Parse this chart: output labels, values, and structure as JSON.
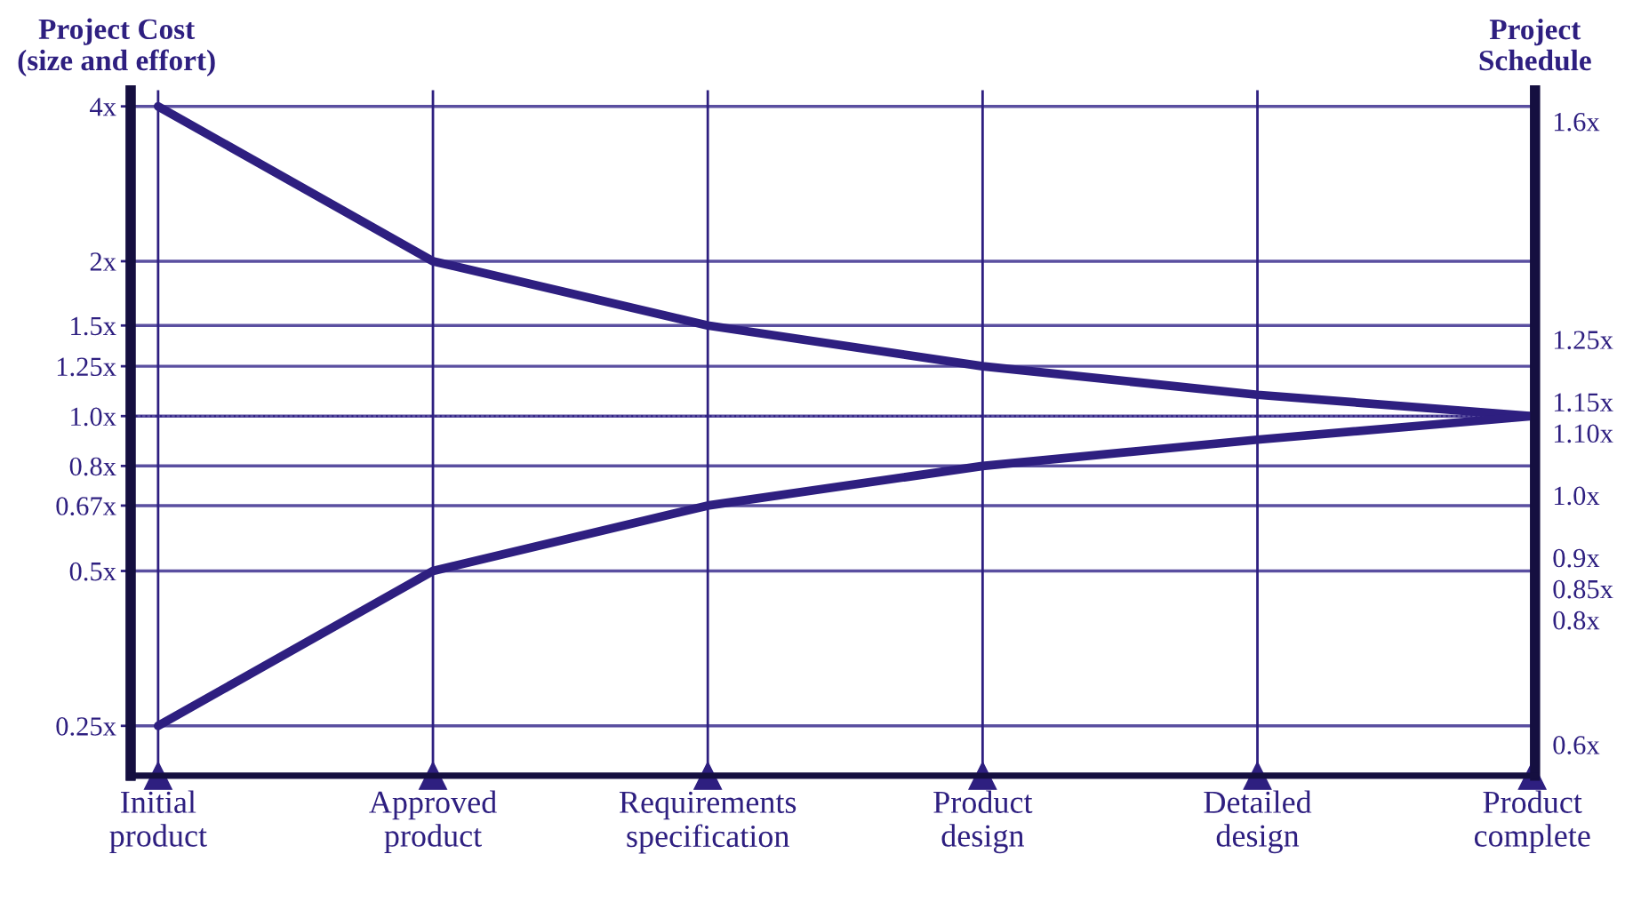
{
  "chart_data": {
    "type": "line",
    "categories": [
      "Initial\nproduct",
      "Approved\nproduct",
      "Requirements\nspecification",
      "Product\ndesign",
      "Detailed\ndesign",
      "Product\ncomplete"
    ],
    "ylabel": "Project Cost\n(size and effort)",
    "y2label": "Project\nSchedule",
    "series": [
      {
        "color": "#2e1f80",
        "values": [
          4,
          2,
          1.5,
          1.25,
          1.1,
          1.0
        ]
      },
      {
        "color": "#2e1f80",
        "values": [
          0.25,
          0.5,
          0.67,
          0.8,
          0.9,
          1.0
        ]
      }
    ],
    "log": "y",
    "ylim": [
      0.2,
      4.3
    ],
    "yticks": [
      {
        "value": 0.25,
        "label": "0.25x"
      },
      {
        "value": 0.5,
        "label": "0.5x"
      },
      {
        "value": 0.67,
        "label": "0.67x"
      },
      {
        "value": 0.8,
        "label": "0.8x"
      },
      {
        "value": 1.0,
        "label": "1.0x"
      },
      {
        "value": 1.25,
        "label": "1.25x"
      },
      {
        "value": 1.5,
        "label": "1.5x"
      },
      {
        "value": 2,
        "label": "2x"
      },
      {
        "value": 4,
        "label": "4x"
      }
    ],
    "y2lim": [
      0.55,
      1.65
    ],
    "y2ticks": [
      {
        "value": 0.6,
        "label": "0.6x"
      },
      {
        "value": 0.8,
        "label": "0.8x"
      },
      {
        "value": 0.85,
        "label": "0.85x"
      },
      {
        "value": 0.9,
        "label": "0.9x"
      },
      {
        "value": 1.0,
        "label": "1.0x"
      },
      {
        "value": 1.1,
        "label": "1.10x"
      },
      {
        "value": 1.15,
        "label": "1.15x"
      },
      {
        "value": 1.25,
        "label": "1.25x"
      },
      {
        "value": 1.6,
        "label": "1.6x"
      }
    ],
    "ref_lines": [
      {
        "axis": "y",
        "value": 1.0,
        "line_style": "dotted",
        "color": "#2e1f80"
      }
    ],
    "grid": true,
    "marker": "none",
    "line_style": "solid"
  }
}
